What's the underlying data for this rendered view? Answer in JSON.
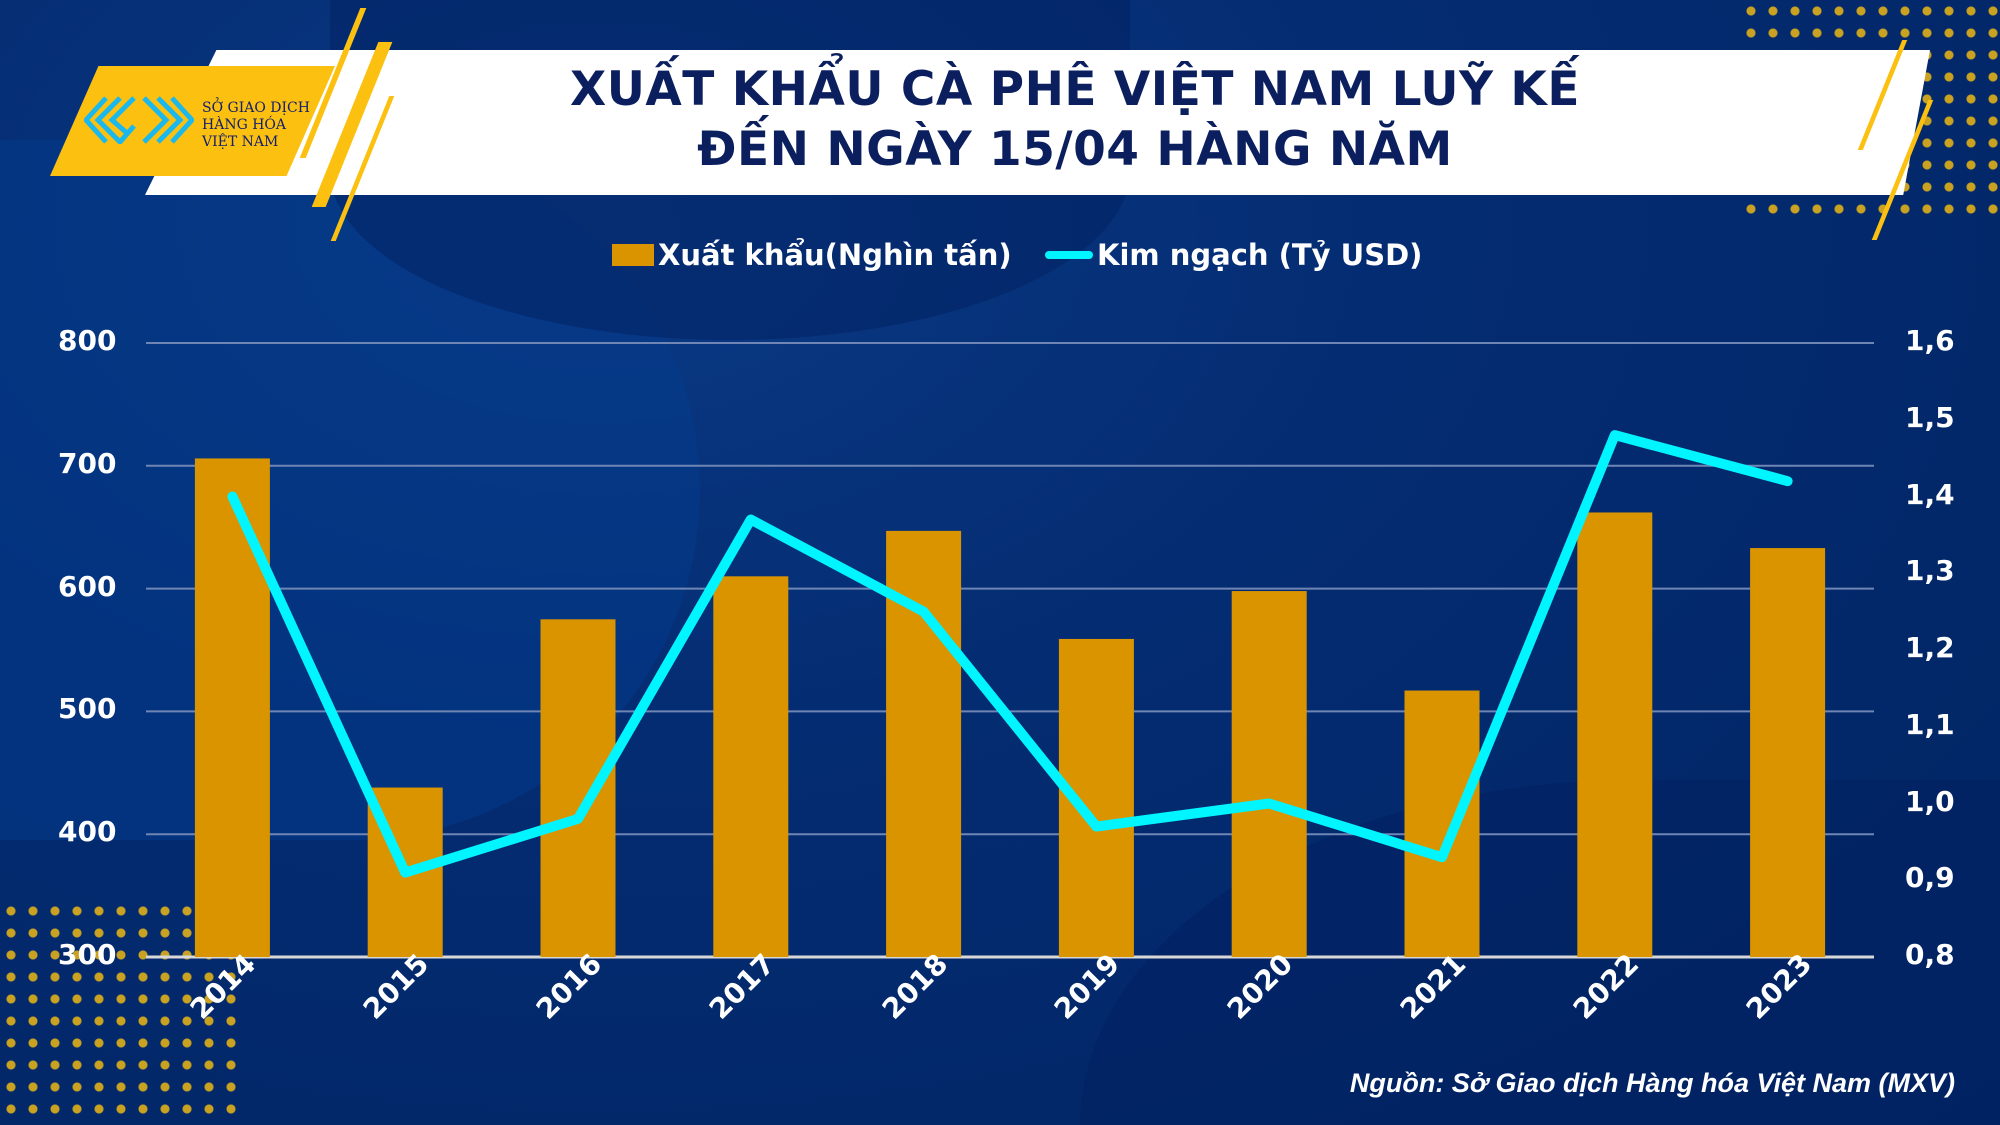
{
  "logo": {
    "text_lines": [
      "SỞ GIAO DỊCH",
      "HÀNG HÓA",
      "VIỆT NAM"
    ]
  },
  "title": {
    "line1": "XUẤT KHẨU CÀ PHÊ VIỆT NAM LUỸ KẾ",
    "line2": "ĐẾN NGÀY 15/04 HÀNG NĂM"
  },
  "footer": {
    "source": "Nguồn: Sở Giao dịch Hàng hóa Việt Nam (MXV)"
  },
  "colors": {
    "bar": "#d99400",
    "line": "#00f5ff",
    "background": "#012b6f",
    "title": "#0b1f5e",
    "accent": "#fcc010"
  },
  "chart_data": {
    "type": "bar+line",
    "title": "XUẤT KHẨU CÀ PHÊ VIỆT NAM LUỸ KẾ ĐẾN NGÀY 15/04 HÀNG NĂM",
    "categories": [
      "2014",
      "2015",
      "2016",
      "2017",
      "2018",
      "2019",
      "2020",
      "2021",
      "2022",
      "2023"
    ],
    "series": [
      {
        "name": "Xuất khẩu(Nghìn tấn)",
        "type": "bar",
        "axis": "left",
        "values": [
          706,
          438,
          575,
          610,
          647,
          559,
          598,
          517,
          662,
          633
        ]
      },
      {
        "name": "Kim ngạch (Tỷ USD)",
        "type": "line",
        "axis": "right",
        "values": [
          1.4,
          0.91,
          0.98,
          1.37,
          1.25,
          0.97,
          1.0,
          0.93,
          1.48,
          1.42
        ]
      }
    ],
    "y_left": {
      "range": [
        300,
        800
      ],
      "ticks": [
        "300",
        "400",
        "500",
        "600",
        "700",
        "800"
      ]
    },
    "y_right": {
      "range": [
        0.8,
        1.6
      ],
      "ticks": [
        "0,8",
        "0,9",
        "1,0",
        "1,1",
        "1,2",
        "1,3",
        "1,4",
        "1,5",
        "1,6"
      ]
    },
    "grid": true,
    "legend": "top-center"
  }
}
